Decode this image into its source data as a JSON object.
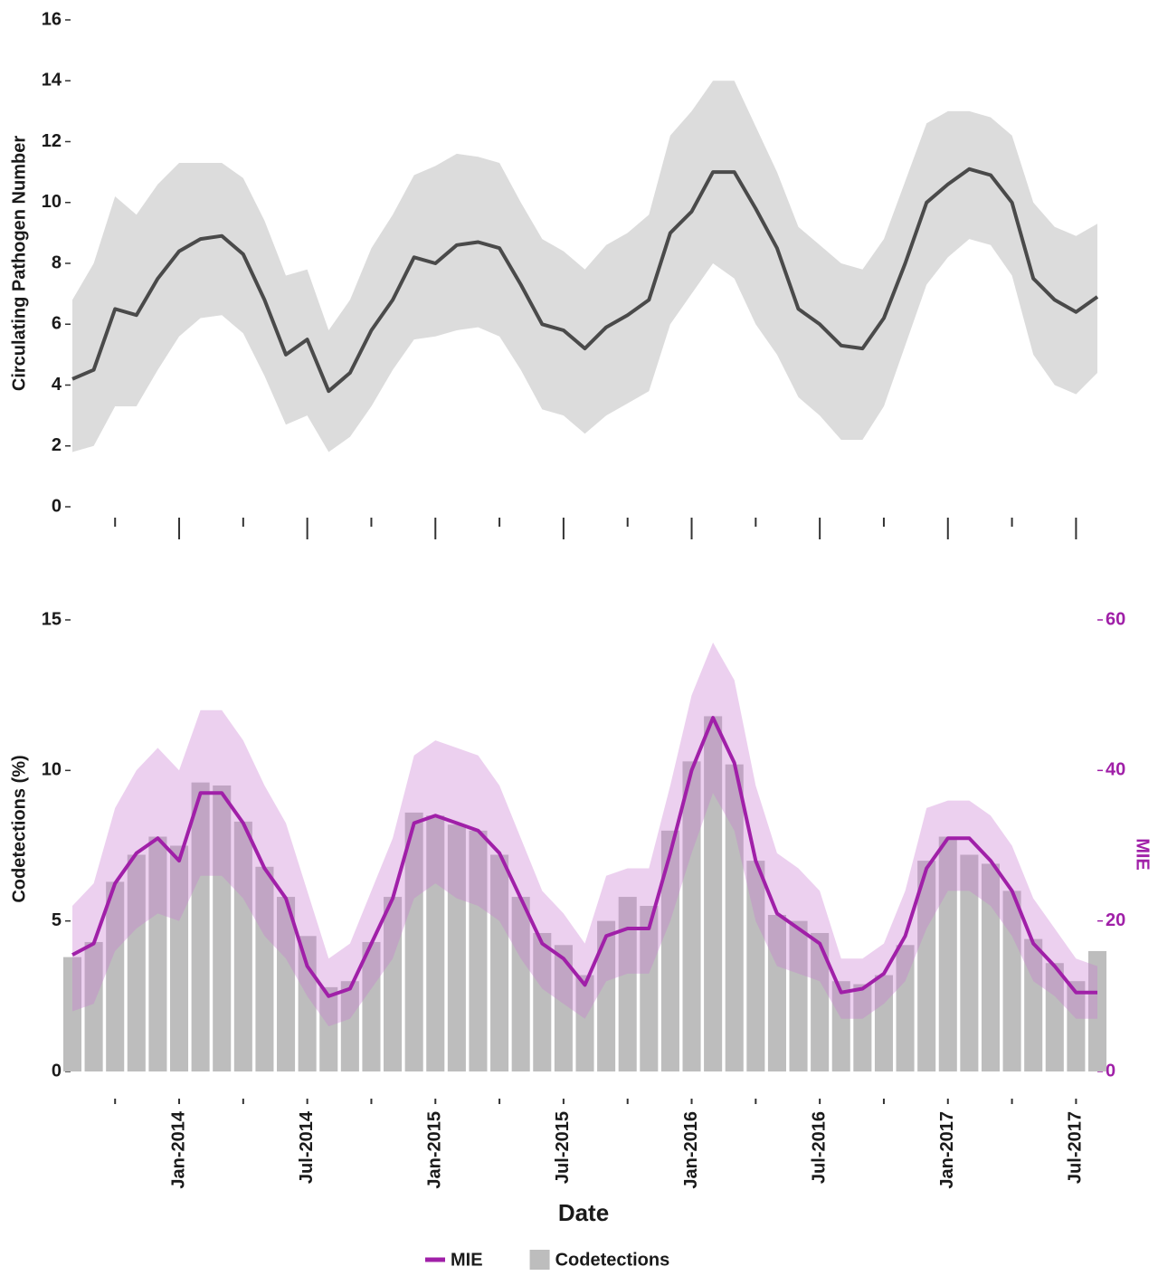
{
  "chart_data": [
    {
      "type": "line",
      "ylabel": "Circulating Pathogen Number",
      "x": [
        "2013-08",
        "2013-09",
        "2013-10",
        "2013-11",
        "2013-12",
        "2014-01",
        "2014-02",
        "2014-03",
        "2014-04",
        "2014-05",
        "2014-06",
        "2014-07",
        "2014-08",
        "2014-09",
        "2014-10",
        "2014-11",
        "2014-12",
        "2015-01",
        "2015-02",
        "2015-03",
        "2015-04",
        "2015-05",
        "2015-06",
        "2015-07",
        "2015-08",
        "2015-09",
        "2015-10",
        "2015-11",
        "2015-12",
        "2016-01",
        "2016-02",
        "2016-03",
        "2016-04",
        "2016-05",
        "2016-06",
        "2016-07",
        "2016-08",
        "2016-09",
        "2016-10",
        "2016-11",
        "2016-12",
        "2017-01",
        "2017-02",
        "2017-03",
        "2017-04",
        "2017-05",
        "2017-06",
        "2017-07",
        "2017-08"
      ],
      "values": [
        4.2,
        4.5,
        6.5,
        6.3,
        7.5,
        8.4,
        8.8,
        8.9,
        8.3,
        6.8,
        5.0,
        5.5,
        3.8,
        4.4,
        5.8,
        6.8,
        8.2,
        8.0,
        8.6,
        8.7,
        8.5,
        7.3,
        6.0,
        5.8,
        5.2,
        5.9,
        6.3,
        6.8,
        9.0,
        9.7,
        11.0,
        11.0,
        9.8,
        8.5,
        6.5,
        6.0,
        5.3,
        5.2,
        6.2,
        8.0,
        10.0,
        10.6,
        11.1,
        10.9,
        10.0,
        7.5,
        6.8,
        6.4,
        6.9
      ],
      "lower": [
        1.8,
        2.0,
        3.3,
        3.3,
        4.5,
        5.6,
        6.2,
        6.3,
        5.7,
        4.3,
        2.7,
        3.0,
        1.8,
        2.3,
        3.3,
        4.5,
        5.5,
        5.6,
        5.8,
        5.9,
        5.6,
        4.5,
        3.2,
        3.0,
        2.4,
        3.0,
        3.4,
        3.8,
        6.0,
        7.0,
        8.0,
        7.5,
        6.0,
        5.0,
        3.6,
        3.0,
        2.2,
        2.2,
        3.3,
        5.3,
        7.3,
        8.2,
        8.8,
        8.6,
        7.6,
        5.0,
        4.0,
        3.7,
        4.4
      ],
      "upper": [
        6.8,
        8.0,
        10.2,
        9.6,
        10.6,
        11.3,
        11.3,
        11.3,
        10.8,
        9.4,
        7.6,
        7.8,
        5.8,
        6.8,
        8.5,
        9.6,
        10.9,
        11.2,
        11.6,
        11.5,
        11.3,
        10.0,
        8.8,
        8.4,
        7.8,
        8.6,
        9.0,
        9.6,
        12.2,
        13.0,
        14.0,
        14.0,
        12.5,
        11.0,
        9.2,
        8.6,
        8.0,
        7.8,
        8.8,
        10.7,
        12.6,
        13.0,
        13.0,
        12.8,
        12.2,
        10.0,
        9.2,
        8.9,
        9.3
      ],
      "color": "#4a4a4a",
      "band_color": "#dcdcdc",
      "xlim": [
        "2013-08",
        "2017-08"
      ],
      "xticks": [
        "2014-01",
        "2014-07",
        "2015-01",
        "2015-07",
        "2016-01",
        "2016-07",
        "2017-01",
        "2017-07"
      ],
      "xminor": [
        "2013-10",
        "2014-04",
        "2014-10",
        "2015-04",
        "2015-10",
        "2016-04",
        "2016-10",
        "2017-04"
      ],
      "ylim": [
        0,
        16
      ],
      "yticks": [
        0,
        2,
        4,
        6,
        8,
        10,
        12,
        14,
        16
      ]
    },
    {
      "type": "bar",
      "xlabel": "Date",
      "ylabel": "Codetections  (%)",
      "y2label": "MIE",
      "y2color": "#a020a8",
      "x": [
        "2013-08",
        "2013-09",
        "2013-10",
        "2013-11",
        "2013-12",
        "2014-01",
        "2014-02",
        "2014-03",
        "2014-04",
        "2014-05",
        "2014-06",
        "2014-07",
        "2014-08",
        "2014-09",
        "2014-10",
        "2014-11",
        "2014-12",
        "2015-01",
        "2015-02",
        "2015-03",
        "2015-04",
        "2015-05",
        "2015-06",
        "2015-07",
        "2015-08",
        "2015-09",
        "2015-10",
        "2015-11",
        "2015-12",
        "2016-01",
        "2016-02",
        "2016-03",
        "2016-04",
        "2016-05",
        "2016-06",
        "2016-07",
        "2016-08",
        "2016-09",
        "2016-10",
        "2016-11",
        "2016-12",
        "2017-01",
        "2017-02",
        "2017-03",
        "2017-04",
        "2017-05",
        "2017-06",
        "2017-07",
        "2017-08"
      ],
      "series": [
        {
          "name": "MIE",
          "color": "#a020a8",
          "band_color": "#c878d0",
          "axis": "y2",
          "values": [
            15.5,
            17,
            25,
            29,
            31,
            28,
            37,
            37,
            33,
            27,
            23,
            14,
            10,
            11,
            17,
            23,
            33,
            34,
            33,
            32,
            29,
            23,
            17,
            15,
            11.5,
            18,
            19,
            19,
            29,
            40,
            47,
            41,
            28,
            21,
            19,
            17,
            10.5,
            11,
            13,
            18,
            27,
            31,
            31,
            28,
            24,
            17,
            14,
            10.5,
            10.5
          ],
          "lower": [
            8,
            9,
            16,
            19,
            21,
            20,
            26,
            26,
            23,
            18,
            15,
            10,
            6,
            7,
            11,
            15,
            23,
            25,
            23,
            22,
            20,
            15,
            11,
            9,
            7,
            12,
            13,
            13,
            20,
            29,
            37,
            32,
            20,
            14,
            13,
            12,
            7,
            7,
            9,
            12,
            19,
            24,
            24,
            22,
            18,
            12,
            10,
            7,
            7
          ],
          "upper": [
            22,
            25,
            35,
            40,
            43,
            40,
            48,
            48,
            44,
            38,
            33,
            24,
            15,
            17,
            24,
            31,
            42,
            44,
            43,
            42,
            38,
            31,
            24,
            21,
            17,
            26,
            27,
            27,
            38,
            50,
            57,
            52,
            38,
            29,
            27,
            24,
            15,
            15,
            17,
            24,
            35,
            36,
            36,
            34,
            30,
            23,
            19,
            15,
            14
          ]
        },
        {
          "name": "Codetections",
          "color": "#bdbdbd",
          "values": [
            3.8,
            4.3,
            6.3,
            7.2,
            7.8,
            7.5,
            9.6,
            9.5,
            8.3,
            6.8,
            5.8,
            4.5,
            2.8,
            3.0,
            4.3,
            5.8,
            8.6,
            8.5,
            8.2,
            8.0,
            7.2,
            5.8,
            4.6,
            4.2,
            3.2,
            5.0,
            5.8,
            5.5,
            8.0,
            10.3,
            11.8,
            10.2,
            7.0,
            5.2,
            5.0,
            4.6,
            3.0,
            2.9,
            3.2,
            4.2,
            7.0,
            7.8,
            7.2,
            6.9,
            6.0,
            4.4,
            3.6,
            3.0,
            4.0
          ]
        }
      ],
      "xlim": [
        "2013-08",
        "2017-08"
      ],
      "xticks": [
        {
          "value": "2014-01",
          "label": "Jan-2014"
        },
        {
          "value": "2014-07",
          "label": "Jul-2014"
        },
        {
          "value": "2015-01",
          "label": "Jan-2015"
        },
        {
          "value": "2015-07",
          "label": "Jul-2015"
        },
        {
          "value": "2016-01",
          "label": "Jan-2016"
        },
        {
          "value": "2016-07",
          "label": "Jul-2016"
        },
        {
          "value": "2017-01",
          "label": "Jan-2017"
        },
        {
          "value": "2017-07",
          "label": "Jul-2017"
        }
      ],
      "xminor": [
        "2013-10",
        "2014-04",
        "2014-10",
        "2015-04",
        "2015-10",
        "2016-04",
        "2016-10",
        "2017-04"
      ],
      "ylim": [
        0,
        15
      ],
      "yticks": [
        0,
        5,
        10,
        15
      ],
      "y2lim": [
        0,
        60
      ],
      "y2ticks": [
        0,
        20,
        40,
        60
      ]
    }
  ]
}
